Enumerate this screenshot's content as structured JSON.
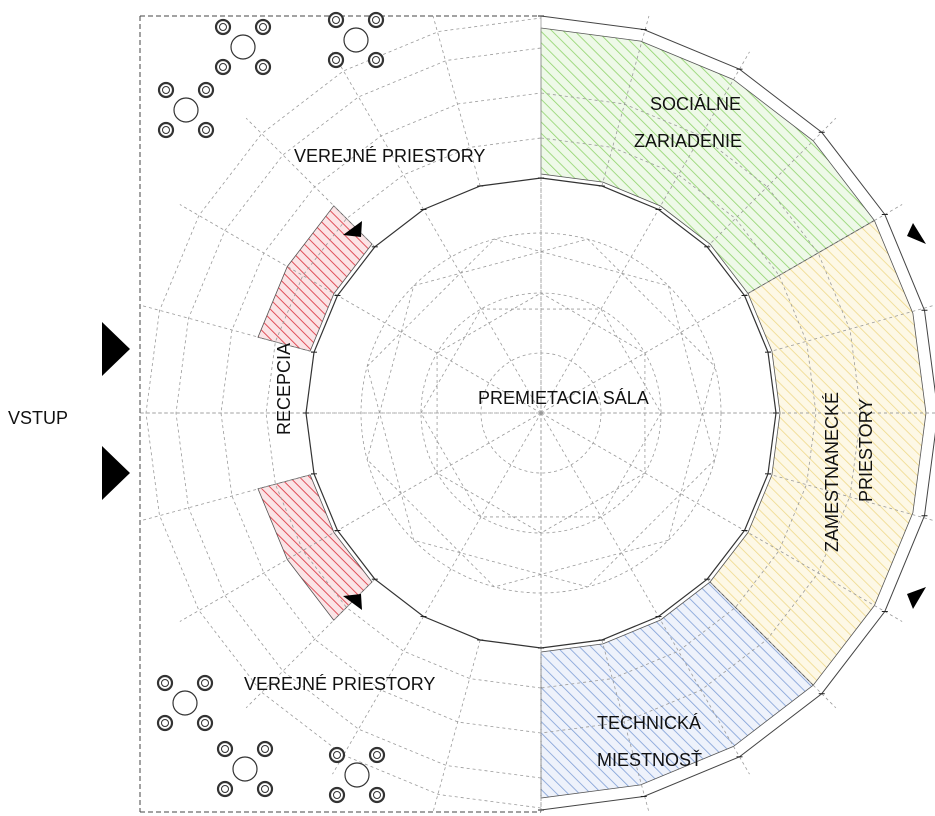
{
  "labels": {
    "entrance": "VSTUP",
    "public_top": "VEREJNÉ PRIESTORY",
    "public_bottom": "VEREJNÉ PRIESTORY",
    "reception": "RECEPCIA",
    "screening_hall": "PREMIETACIA SÁLA",
    "sanitary_line1": "SOCIÁLNE",
    "sanitary_line2": "ZARIADENIE",
    "staff_line1": "ZAMESTNANECKÉ",
    "staff_line2": "PRIESTORY",
    "technical_line1": "TECHNICKÁ",
    "technical_line2": "MIESTNOSŤ"
  },
  "colors": {
    "reception_hatch": "#e0505a",
    "sanitary_hatch": "#8fd36b",
    "staff_hatch": "#efd98a",
    "technical_hatch": "#7f9fd6",
    "grid": "#9a9a9a",
    "ink": "#111111"
  }
}
